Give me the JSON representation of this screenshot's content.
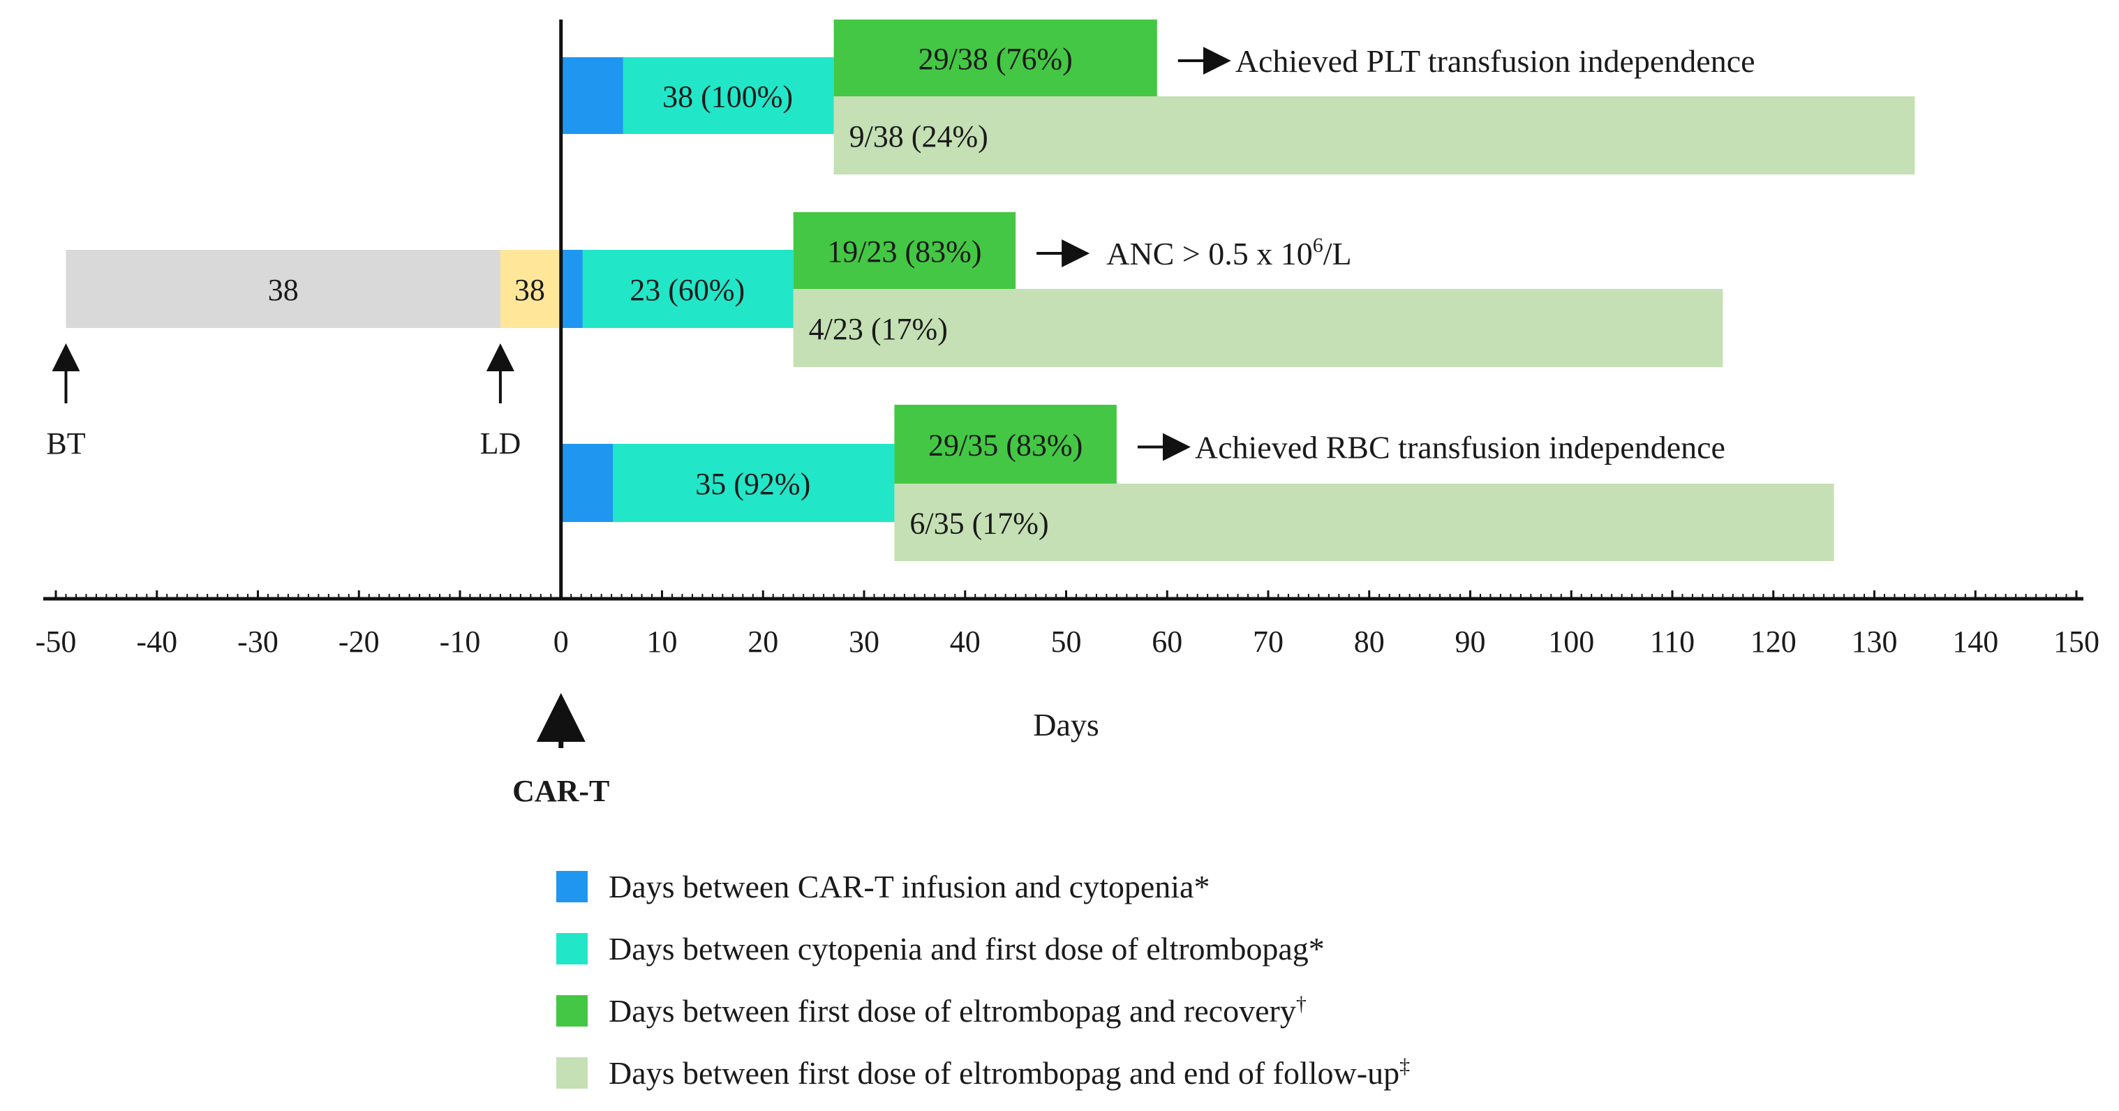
{
  "chart_data": {
    "type": "bar",
    "orientation": "horizontal-stacked-timeline",
    "xlabel": "Days",
    "xlim": [
      -50,
      150
    ],
    "xticks": [
      "-50",
      "-40",
      "-30",
      "-20",
      "-10",
      "0",
      "10",
      "20",
      "30",
      "40",
      "50",
      "60",
      "70",
      "80",
      "90",
      "100",
      "110",
      "120",
      "130",
      "140",
      "150"
    ],
    "colors": {
      "pre_bt": "#d9d9d9",
      "pre_ld": "#ffe699",
      "infusion_to_cytopenia": "#1f97f0",
      "cytopenia_to_eltrombopag": "#22e6c8",
      "eltrombopag_to_recovery": "#44c744",
      "eltrombopag_to_followup": "#c5e0b4"
    },
    "pre_treatment": [
      {
        "name": "BT",
        "start": -49,
        "end": -6,
        "label": "38",
        "color_key": "pre_bt"
      },
      {
        "name": "LD",
        "start": -6,
        "end": -0.2,
        "label": "38",
        "color_key": "pre_ld"
      }
    ],
    "markers": [
      {
        "name": "BT",
        "x": -49,
        "label": "BT"
      },
      {
        "name": "LD",
        "x": -6,
        "label": "LD"
      },
      {
        "name": "CAR-T",
        "x": 0,
        "label": "CAR-T"
      }
    ],
    "rows": [
      {
        "id": "plt",
        "segments": [
          {
            "key": "infusion_to_cytopenia",
            "start": 0,
            "end": 6,
            "label": ""
          },
          {
            "key": "cytopenia_to_eltrombopag",
            "start": 6,
            "end": 27,
            "label": "38 (100%)"
          },
          {
            "key": "eltrombopag_to_recovery",
            "start": 27,
            "end": 59,
            "label": "29/38 (76%)"
          },
          {
            "key": "eltrombopag_to_followup",
            "start": 27,
            "end": 134,
            "label": "9/38 (24%)"
          }
        ],
        "outcome": "Achieved PLT transfusion independence"
      },
      {
        "id": "anc",
        "segments": [
          {
            "key": "infusion_to_cytopenia",
            "start": 0,
            "end": 2,
            "label": ""
          },
          {
            "key": "cytopenia_to_eltrombopag",
            "start": 2,
            "end": 23,
            "label": "23 (60%)"
          },
          {
            "key": "eltrombopag_to_recovery",
            "start": 23,
            "end": 45,
            "label": "19/23 (83%)"
          },
          {
            "key": "eltrombopag_to_followup",
            "start": 23,
            "end": 115,
            "label": "4/23 (17%)"
          }
        ],
        "outcome_main": "ANC > 0.5 x 10",
        "outcome_sup": "6",
        "outcome_tail": "/L"
      },
      {
        "id": "rbc",
        "segments": [
          {
            "key": "infusion_to_cytopenia",
            "start": 0,
            "end": 5,
            "label": ""
          },
          {
            "key": "cytopenia_to_eltrombopag",
            "start": 5,
            "end": 33,
            "label": "35 (92%)"
          },
          {
            "key": "eltrombopag_to_recovery",
            "start": 33,
            "end": 55,
            "label": "29/35 (83%)"
          },
          {
            "key": "eltrombopag_to_followup",
            "start": 33,
            "end": 126,
            "label": "6/35 (17%)"
          }
        ],
        "outcome": "Achieved RBC transfusion independence"
      }
    ],
    "legend": [
      {
        "key": "infusion_to_cytopenia",
        "text": "Days between CAR-T infusion and cytopenia",
        "mark": "*"
      },
      {
        "key": "cytopenia_to_eltrombopag",
        "text": "Days between cytopenia and first dose of eltrombopag",
        "mark": "*"
      },
      {
        "key": "eltrombopag_to_recovery",
        "text": "Days between first dose of eltrombopag and recovery",
        "mark": "†"
      },
      {
        "key": "eltrombopag_to_followup",
        "text": "Days between first dose of eltrombopag and end of follow-up",
        "mark": "‡"
      }
    ]
  }
}
